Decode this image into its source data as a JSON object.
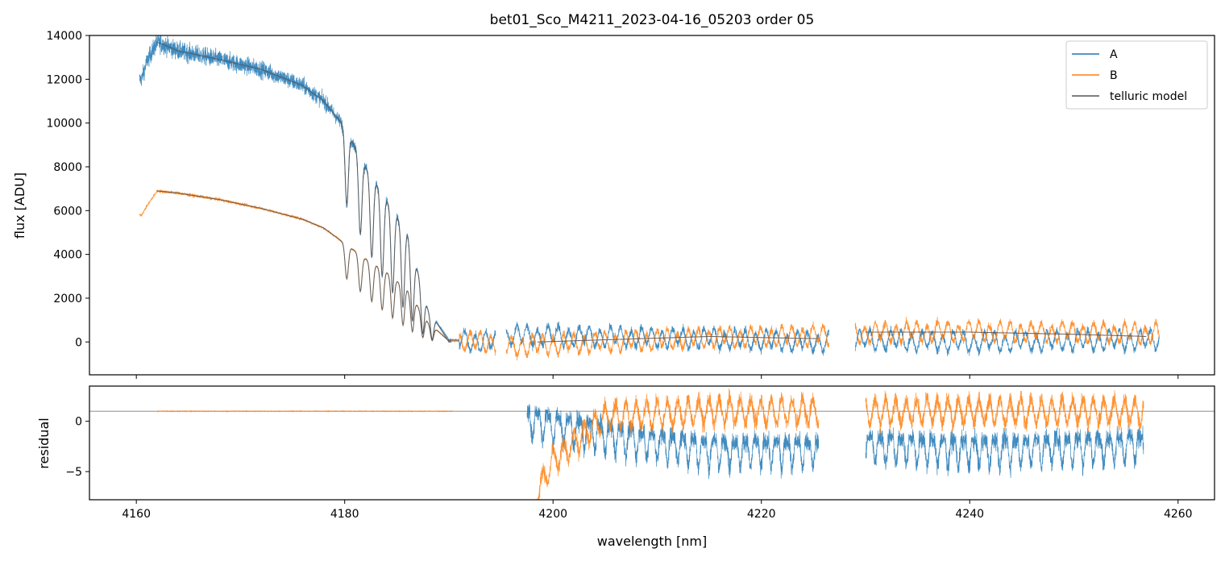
{
  "chart_data": [
    {
      "type": "line",
      "panel": "top",
      "title": "bet01_Sco_M4211_2023-04-16_05203  order 05",
      "ylabel": "flux [ADU]",
      "xlim": [
        4155.5,
        4263.5
      ],
      "ylim": [
        -1500,
        14000
      ],
      "x_ticks": [
        4160,
        4180,
        4200,
        4220,
        4240,
        4260
      ],
      "y_ticks": [
        0,
        2000,
        4000,
        6000,
        8000,
        10000,
        12000,
        14000
      ],
      "grid": false,
      "legend_position": "top-right",
      "segments": [
        {
          "x_range": [
            4160.3,
            4194.5
          ],
          "note": "strong flux with telluric absorption lines"
        },
        {
          "x_range": [
            4195.5,
            4226.5
          ],
          "note": "low flux, noisy"
        },
        {
          "x_range": [
            4229.0,
            4258.2
          ],
          "note": "low flux, noisy"
        }
      ],
      "series": [
        {
          "name": "A",
          "color": "#1f77b4",
          "x": [
            4160.5,
            4161,
            4162,
            4164,
            4168,
            4172,
            4176,
            4178,
            4180,
            4182,
            4184,
            4186,
            4188,
            4190,
            4194.5,
            4196,
            4205,
            4215,
            4226,
            4229,
            4240,
            4258
          ],
          "y": [
            12000,
            12800,
            13700,
            13300,
            12900,
            12450,
            11700,
            11000,
            9800,
            8000,
            6500,
            5000,
            1500,
            100,
            0,
            300,
            250,
            150,
            0,
            100,
            0,
            100
          ]
        },
        {
          "name": "B",
          "color": "#ff7f0e",
          "x": [
            4160.5,
            4161,
            4162,
            4164,
            4168,
            4172,
            4176,
            4178,
            4180,
            4182,
            4184,
            4186,
            4188,
            4190,
            4194.5,
            4196,
            4205,
            4215,
            4226,
            4229,
            4240,
            4258
          ],
          "y": [
            5800,
            6200,
            6900,
            6800,
            6500,
            6100,
            5600,
            5200,
            4500,
            3800,
            3200,
            2400,
            900,
            50,
            0,
            -200,
            0,
            200,
            300,
            400,
            500,
            400
          ]
        },
        {
          "name": "telluric model",
          "color": "#555555",
          "x": [
            4162,
            4164,
            4168,
            4172,
            4176,
            4178,
            4180,
            4182,
            4184,
            4186,
            4188,
            4190,
            4198.5,
            4205,
            4215,
            4225.5,
            4230,
            4240,
            4250,
            4257
          ],
          "y": [
            13700,
            13300,
            12900,
            12450,
            11700,
            11000,
            9800,
            8000,
            6500,
            5000,
            1500,
            0,
            0,
            100,
            250,
            150,
            450,
            450,
            350,
            250
          ]
        }
      ]
    },
    {
      "type": "line",
      "panel": "bottom",
      "xlabel": "wavelength [nm]",
      "ylabel": "residual",
      "xlim": [
        4155.5,
        4263.5
      ],
      "ylim": [
        -7.8,
        3.5
      ],
      "x_ticks": [
        4160,
        4180,
        4200,
        4220,
        4240,
        4260
      ],
      "y_ticks": [
        0,
        -5
      ],
      "y_tick_labels": [
        "0",
        "−5"
      ],
      "x_tick_labels": [
        "4160",
        "4180",
        "4200",
        "4220",
        "4240",
        "4260"
      ],
      "reference_line_y": 1,
      "reference_line_color": "#7f7f7f",
      "series": [
        {
          "name": "A",
          "color": "#1f77b4",
          "x": [
            4162,
            4175,
            4185,
            4190.5,
            4197.5,
            4205,
            4215,
            4225.5,
            4230,
            4240,
            4256.7
          ],
          "y": [
            1,
            1,
            1,
            1,
            1,
            -0.5,
            -2,
            -2,
            -1.5,
            -2,
            -1.5
          ]
        },
        {
          "name": "B",
          "color": "#ff7f0e",
          "x": [
            4162,
            4175,
            4185,
            4190.5,
            4198.5,
            4200,
            4205,
            4215,
            4225.5,
            4230,
            4240,
            4256.7
          ],
          "y": [
            1,
            1,
            1,
            1,
            -7,
            -4,
            0.5,
            1,
            1,
            1,
            1,
            1
          ]
        }
      ]
    }
  ]
}
